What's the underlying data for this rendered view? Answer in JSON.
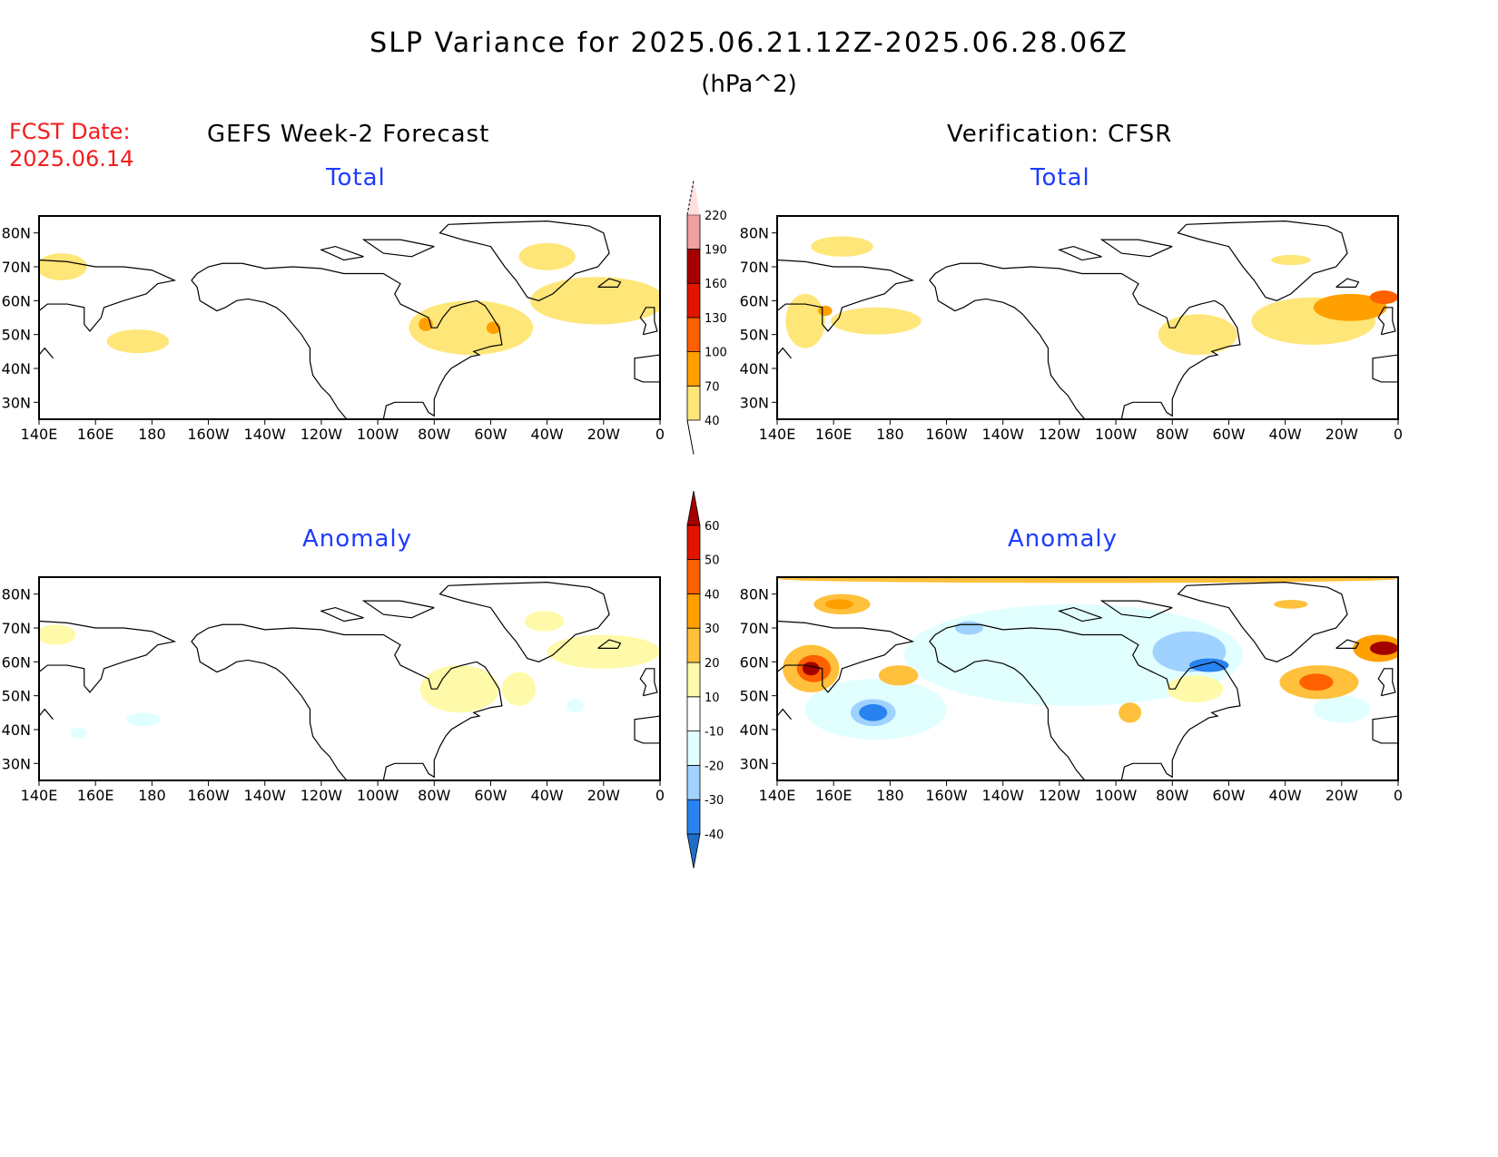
{
  "title": "SLP Variance for 2025.06.21.12Z-2025.06.28.06Z",
  "units": "(hPa^2)",
  "fcst_label": "FCST Date:",
  "fcst_date": "2025.06.14",
  "left_header": "GEFS Week-2 Forecast",
  "right_header": "Verification: CFSR",
  "total_label": "Total",
  "anomaly_label": "Anomaly",
  "chart_data": {
    "type": "heatmap",
    "lon_ticks": [
      "140E",
      "160E",
      "180",
      "160W",
      "140W",
      "120W",
      "100W",
      "80W",
      "60W",
      "40W",
      "20W",
      "0"
    ],
    "lon_values": [
      140,
      160,
      180,
      200,
      220,
      240,
      260,
      280,
      300,
      320,
      340,
      360
    ],
    "lat_ticks": [
      "80N",
      "70N",
      "60N",
      "50N",
      "40N",
      "30N"
    ],
    "lat_values": [
      80,
      70,
      60,
      50,
      40,
      30
    ],
    "lat_range": [
      25,
      85
    ],
    "lon_range": [
      140,
      360
    ],
    "total_colorbar": {
      "levels": [
        "40",
        "70",
        "100",
        "130",
        "160",
        "190",
        "220"
      ],
      "colors": [
        "#ffe678",
        "#ffa000",
        "#ff6000",
        "#e11400",
        "#a50000",
        "#f0a0a0",
        "#ffe0e0"
      ]
    },
    "anomaly_colorbar": {
      "levels": [
        "-40",
        "-30",
        "-20",
        "-10",
        "10",
        "20",
        "30",
        "40",
        "50",
        "60"
      ],
      "colors": [
        "#1e6ec8",
        "#2882f0",
        "#a0d2ff",
        "#e1ffff",
        "#ffffff",
        "#fffaaa",
        "#ffc03c",
        "#ffa000",
        "#ff6000",
        "#e11400",
        "#a50000"
      ]
    },
    "panels": [
      {
        "name": "gefs-total",
        "features": [
          {
            "lon": 148,
            "lat": 70,
            "rl": 9,
            "rt": 4,
            "color": "#ffe678"
          },
          {
            "lon": 175,
            "lat": 48,
            "rl": 11,
            "rt": 3.5,
            "color": "#ffe678"
          },
          {
            "lon": 320,
            "lat": 73,
            "rl": 10,
            "rt": 4,
            "color": "#ffe678"
          },
          {
            "lon": 293,
            "lat": 52,
            "rl": 22,
            "rt": 8,
            "color": "#ffe678"
          },
          {
            "lon": 338,
            "lat": 60,
            "rl": 24,
            "rt": 7,
            "color": "#ffe678"
          },
          {
            "lon": 277,
            "lat": 53,
            "rl": 2.5,
            "rt": 2,
            "color": "#ffa000"
          },
          {
            "lon": 301,
            "lat": 52,
            "rl": 2.5,
            "rt": 1.8,
            "color": "#ffa000"
          }
        ]
      },
      {
        "name": "cfsr-total",
        "features": [
          {
            "lon": 163,
            "lat": 76,
            "rl": 11,
            "rt": 3,
            "color": "#ffe678"
          },
          {
            "lon": 175,
            "lat": 54,
            "rl": 16,
            "rt": 4,
            "color": "#ffe678"
          },
          {
            "lon": 150,
            "lat": 54,
            "rl": 7,
            "rt": 8,
            "color": "#ffe678"
          },
          {
            "lon": 289,
            "lat": 50,
            "rl": 14,
            "rt": 6,
            "color": "#ffe678"
          },
          {
            "lon": 330,
            "lat": 54,
            "rl": 22,
            "rt": 7,
            "color": "#ffe678"
          },
          {
            "lon": 322,
            "lat": 72,
            "rl": 7,
            "rt": 1.5,
            "color": "#ffe678"
          },
          {
            "lon": 343,
            "lat": 58,
            "rl": 13,
            "rt": 4,
            "color": "#ffa000"
          },
          {
            "lon": 355,
            "lat": 61,
            "rl": 5,
            "rt": 2,
            "color": "#ff6000"
          },
          {
            "lon": 157,
            "lat": 57,
            "rl": 2.5,
            "rt": 1.5,
            "color": "#ffa000"
          }
        ]
      },
      {
        "name": "gefs-anomaly",
        "features": [
          {
            "lon": 146,
            "lat": 68,
            "rl": 7,
            "rt": 3,
            "color": "#fffaaa"
          },
          {
            "lon": 289,
            "lat": 52,
            "rl": 14,
            "rt": 7,
            "color": "#fffaaa"
          },
          {
            "lon": 310,
            "lat": 52,
            "rl": 6,
            "rt": 5,
            "color": "#fffaaa"
          },
          {
            "lon": 319,
            "lat": 72,
            "rl": 7,
            "rt": 3,
            "color": "#fffaaa"
          },
          {
            "lon": 340,
            "lat": 63,
            "rl": 20,
            "rt": 5,
            "color": "#fffaaa"
          },
          {
            "lon": 177,
            "lat": 43,
            "rl": 6,
            "rt": 2,
            "color": "#e1ffff"
          },
          {
            "lon": 154,
            "lat": 39,
            "rl": 3,
            "rt": 1.5,
            "color": "#e1ffff"
          },
          {
            "lon": 330,
            "lat": 47,
            "rl": 3,
            "rt": 2,
            "color": "#e1ffff"
          }
        ]
      },
      {
        "name": "cfsr-anomaly",
        "features": [
          {
            "lon": 245,
            "lat": 62,
            "rl": 60,
            "rt": 15,
            "color": "#e1ffff"
          },
          {
            "lon": 175,
            "lat": 46,
            "rl": 25,
            "rt": 9,
            "color": "#e1ffff"
          },
          {
            "lon": 340,
            "lat": 46,
            "rl": 10,
            "rt": 4,
            "color": "#e1ffff"
          },
          {
            "lon": 286,
            "lat": 63,
            "rl": 13,
            "rt": 6,
            "color": "#a0d2ff"
          },
          {
            "lon": 293,
            "lat": 59,
            "rl": 7,
            "rt": 2,
            "color": "#2882f0"
          },
          {
            "lon": 208,
            "lat": 70,
            "rl": 5,
            "rt": 2,
            "color": "#a0d2ff"
          },
          {
            "lon": 174,
            "lat": 45,
            "rl": 8,
            "rt": 4,
            "color": "#a0d2ff"
          },
          {
            "lon": 174,
            "lat": 45,
            "rl": 5,
            "rt": 2.5,
            "color": "#2882f0"
          },
          {
            "lon": 163,
            "lat": 77,
            "rl": 10,
            "rt": 3,
            "color": "#ffc03c"
          },
          {
            "lon": 162,
            "lat": 77,
            "rl": 5,
            "rt": 1.5,
            "color": "#ffa000"
          },
          {
            "lon": 152,
            "lat": 58,
            "rl": 10,
            "rt": 7,
            "color": "#ffc03c"
          },
          {
            "lon": 153,
            "lat": 58,
            "rl": 6,
            "rt": 4,
            "color": "#ff6000"
          },
          {
            "lon": 152,
            "lat": 58,
            "rl": 3,
            "rt": 2,
            "color": "#a50000"
          },
          {
            "lon": 183,
            "lat": 56,
            "rl": 7,
            "rt": 3,
            "color": "#ffc03c"
          },
          {
            "lon": 288,
            "lat": 52,
            "rl": 10,
            "rt": 4,
            "color": "#fffaaa"
          },
          {
            "lon": 265,
            "lat": 45,
            "rl": 4,
            "rt": 3,
            "color": "#ffc03c"
          },
          {
            "lon": 332,
            "lat": 54,
            "rl": 14,
            "rt": 5,
            "color": "#ffc03c"
          },
          {
            "lon": 331,
            "lat": 54,
            "rl": 6,
            "rt": 2.5,
            "color": "#ff6000"
          },
          {
            "lon": 353,
            "lat": 64,
            "rl": 9,
            "rt": 4,
            "color": "#ffa000"
          },
          {
            "lon": 355,
            "lat": 64,
            "rl": 5,
            "rt": 2,
            "color": "#a50000"
          },
          {
            "lon": 250,
            "lat": 84.5,
            "rl": 110,
            "rt": 1.2,
            "color": "#ffc03c"
          },
          {
            "lon": 322,
            "lat": 77,
            "rl": 6,
            "rt": 1.3,
            "color": "#ffc03c"
          }
        ]
      }
    ]
  }
}
